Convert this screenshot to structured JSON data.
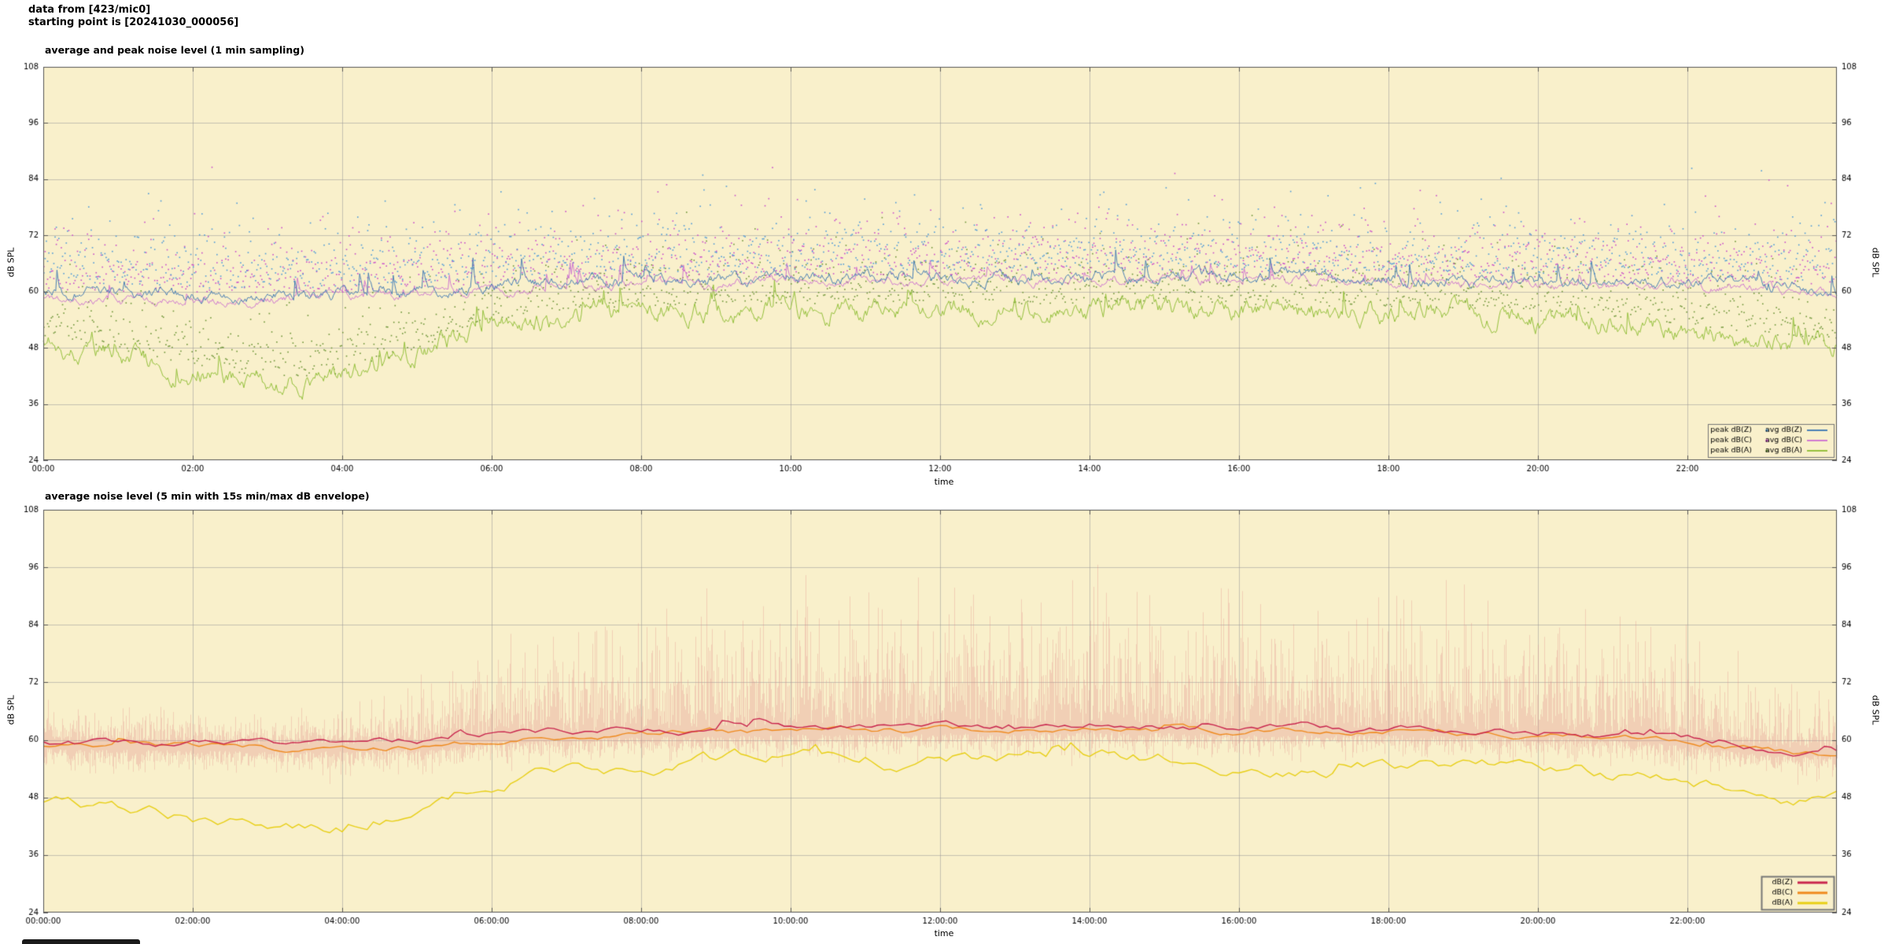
{
  "header": {
    "line1": "data from [423/mic0]",
    "line2": "starting point is [20241030_000056]"
  },
  "chart_data": [
    {
      "type": "scatter+line",
      "title": "average and peak noise level (1 min sampling)",
      "xlabel": "time",
      "ylabel": "dB SPL",
      "xlim": [
        0,
        24
      ],
      "ylim": [
        24,
        108
      ],
      "xticks": {
        "hours": [
          0,
          2,
          4,
          6,
          8,
          10,
          12,
          14,
          16,
          18,
          20,
          22
        ],
        "labels": [
          "00:00",
          "02:00",
          "04:00",
          "06:00",
          "08:00",
          "10:00",
          "12:00",
          "14:00",
          "16:00",
          "18:00",
          "20:00",
          "22:00"
        ]
      },
      "yticks": {
        "values": [
          24,
          36,
          48,
          60,
          72,
          84,
          96,
          108
        ],
        "labels": [
          "24",
          "36",
          "48",
          "60",
          "72",
          "84",
          "96",
          "108"
        ]
      },
      "style": {
        "plot_bg": "#f9f0cb",
        "grid_color": "#9a9a9a",
        "border_color": "#555555",
        "text_color": "#000000",
        "line_width": 1
      },
      "samples_per_hour": 60,
      "scatter_series": [
        {
          "name": "peak dB(Z)",
          "color": "#4f9ad8",
          "hourly_base": [
            61.3,
            61.0,
            60.8,
            60.7,
            60.8,
            61.5,
            63.0,
            63.5,
            63.8,
            64.0,
            64.3,
            64.5,
            64.5,
            64.5,
            64.8,
            64.5,
            64.5,
            64.5,
            64.3,
            64.0,
            63.8,
            63.5,
            63.3,
            62.8,
            62.0
          ],
          "spread": 6.0,
          "outlier_prob": 0.02,
          "outlier_extra": 16
        },
        {
          "name": "peak dB(C)",
          "color": "#c94ccb",
          "hourly_base": [
            60.3,
            60.0,
            59.8,
            59.7,
            59.8,
            60.5,
            62.0,
            62.5,
            62.8,
            63.0,
            63.3,
            63.5,
            63.5,
            63.5,
            63.8,
            63.5,
            63.5,
            63.5,
            63.3,
            63.0,
            62.8,
            62.5,
            62.3,
            61.8,
            61.0
          ],
          "spread": 6.0,
          "outlier_prob": 0.02,
          "outlier_extra": 14
        },
        {
          "name": "peak dB(A)",
          "color": "#6f9639",
          "hourly_base": [
            50.5,
            47.5,
            44.5,
            41.5,
            42.5,
            48.0,
            54.0,
            56.0,
            56.8,
            57.2,
            57.5,
            57.3,
            57.5,
            57.3,
            57.6,
            57.3,
            57.2,
            57.0,
            56.8,
            56.5,
            55.5,
            54.5,
            53.0,
            51.0,
            49.0
          ],
          "spread": 5.5,
          "outlier_prob": 0.015,
          "outlier_extra": 12
        }
      ],
      "line_series": [
        {
          "name": "avg dB(Z)",
          "color": "#4a7fb5",
          "hourly": [
            59.8,
            59.5,
            59.3,
            59.2,
            59.3,
            60.0,
            61.5,
            62.0,
            62.3,
            62.5,
            62.8,
            63.0,
            63.0,
            63.0,
            63.3,
            63.0,
            63.0,
            63.0,
            62.8,
            62.5,
            62.3,
            62.0,
            61.8,
            61.3,
            60.5
          ],
          "jitter": 1.5,
          "spike_prob": 0.03,
          "spike_max": 9
        },
        {
          "name": "avg dB(C)",
          "color": "#d07ad0",
          "hourly": [
            58.8,
            58.6,
            58.4,
            58.3,
            58.4,
            59.2,
            60.8,
            61.3,
            61.6,
            61.8,
            62.0,
            62.2,
            62.2,
            62.2,
            62.4,
            62.2,
            62.2,
            62.1,
            62.0,
            61.8,
            61.5,
            61.3,
            61.0,
            60.5,
            59.8
          ],
          "jitter": 1.2,
          "spike_prob": 0.025,
          "spike_max": 7
        },
        {
          "name": "avg dB(A)",
          "color": "#95c13d",
          "hourly": [
            49.5,
            46.5,
            43.5,
            40.5,
            41.5,
            47.0,
            53.0,
            55.0,
            55.8,
            56.2,
            56.5,
            56.3,
            56.5,
            56.3,
            56.6,
            56.3,
            56.2,
            56.0,
            55.8,
            55.5,
            54.5,
            53.5,
            52.0,
            50.0,
            48.0
          ],
          "jitter": 2.6,
          "spike_prob": 0.035,
          "spike_max": 9
        }
      ],
      "legend": {
        "columns": [
          [
            "peak dB(Z)",
            "peak dB(C)",
            "peak dB(A)"
          ],
          [
            "avg dB(Z)",
            "avg dB(C)",
            "avg dB(A)"
          ]
        ]
      }
    },
    {
      "type": "line+envelope",
      "title": "average noise level (5 min with 15s min/max dB envelope)",
      "xlabel": "time",
      "ylabel": "dB SPL",
      "xlim": [
        0,
        24
      ],
      "ylim": [
        24,
        108
      ],
      "xticks": {
        "hours": [
          0,
          2,
          4,
          6,
          8,
          10,
          12,
          14,
          16,
          18,
          20,
          22
        ],
        "labels": [
          "00:00:00",
          "02:00:00",
          "04:00:00",
          "06:00:00",
          "08:00:00",
          "10:00:00",
          "12:00:00",
          "14:00:00",
          "16:00:00",
          "18:00:00",
          "20:00:00",
          "22:00:00"
        ]
      },
      "yticks": {
        "values": [
          24,
          36,
          48,
          60,
          72,
          84,
          96,
          108
        ],
        "labels": [
          "24",
          "36",
          "48",
          "60",
          "72",
          "84",
          "96",
          "108"
        ]
      },
      "style": {
        "plot_bg": "#f9f0cb",
        "grid_color": "#9a9a9a",
        "border_color": "#555555",
        "text_color": "#000000",
        "line_width": 1.4
      },
      "samples_per_hour": 12,
      "envelope": {
        "color": "#e08a8a",
        "alpha": 0.32,
        "based_on": "dB(Z)",
        "min_below": 3.5,
        "max_extra_hourly": [
          7,
          6,
          6,
          6,
          7,
          9,
          13,
          16,
          18,
          20,
          22,
          22,
          23,
          22,
          24,
          22,
          22,
          22,
          21,
          20,
          18,
          17,
          15,
          11,
          9
        ]
      },
      "line_series": [
        {
          "name": "dB(Z)",
          "color": "#c9254e",
          "hourly": [
            59.6,
            59.4,
            59.2,
            59.0,
            59.1,
            59.6,
            61.0,
            61.6,
            62.0,
            62.2,
            62.5,
            62.5,
            62.8,
            62.6,
            63.2,
            62.9,
            62.6,
            62.5,
            62.5,
            62.2,
            62.0,
            61.5,
            60.2,
            58.5,
            58.0
          ],
          "jitter": 1.0,
          "spike_prob": 0.05,
          "spike_max": 2.5
        },
        {
          "name": "dB(C)",
          "color": "#ef8a1e",
          "hourly": [
            58.7,
            58.5,
            58.3,
            58.1,
            58.2,
            58.8,
            60.2,
            60.9,
            61.3,
            61.5,
            61.8,
            61.8,
            62.0,
            61.9,
            62.4,
            62.1,
            61.9,
            61.8,
            61.8,
            61.5,
            61.2,
            60.7,
            59.4,
            57.6,
            57.0
          ],
          "jitter": 0.9,
          "spike_prob": 0.04,
          "spike_max": 2.0
        },
        {
          "name": "dB(A)",
          "color": "#e8cf16",
          "hourly": [
            47.0,
            45.5,
            43.0,
            41.0,
            42.0,
            47.0,
            52.0,
            54.0,
            54.5,
            55.0,
            56.0,
            55.5,
            56.0,
            56.5,
            57.0,
            56.0,
            55.0,
            54.8,
            55.2,
            55.5,
            54.0,
            53.0,
            52.0,
            48.5,
            47.0
          ],
          "jitter": 2.0,
          "spike_prob": 0.05,
          "spike_max": 3.0
        }
      ],
      "legend": {
        "columns": [
          [
            "dB(Z)",
            "dB(C)",
            "dB(A)"
          ]
        ]
      }
    }
  ]
}
